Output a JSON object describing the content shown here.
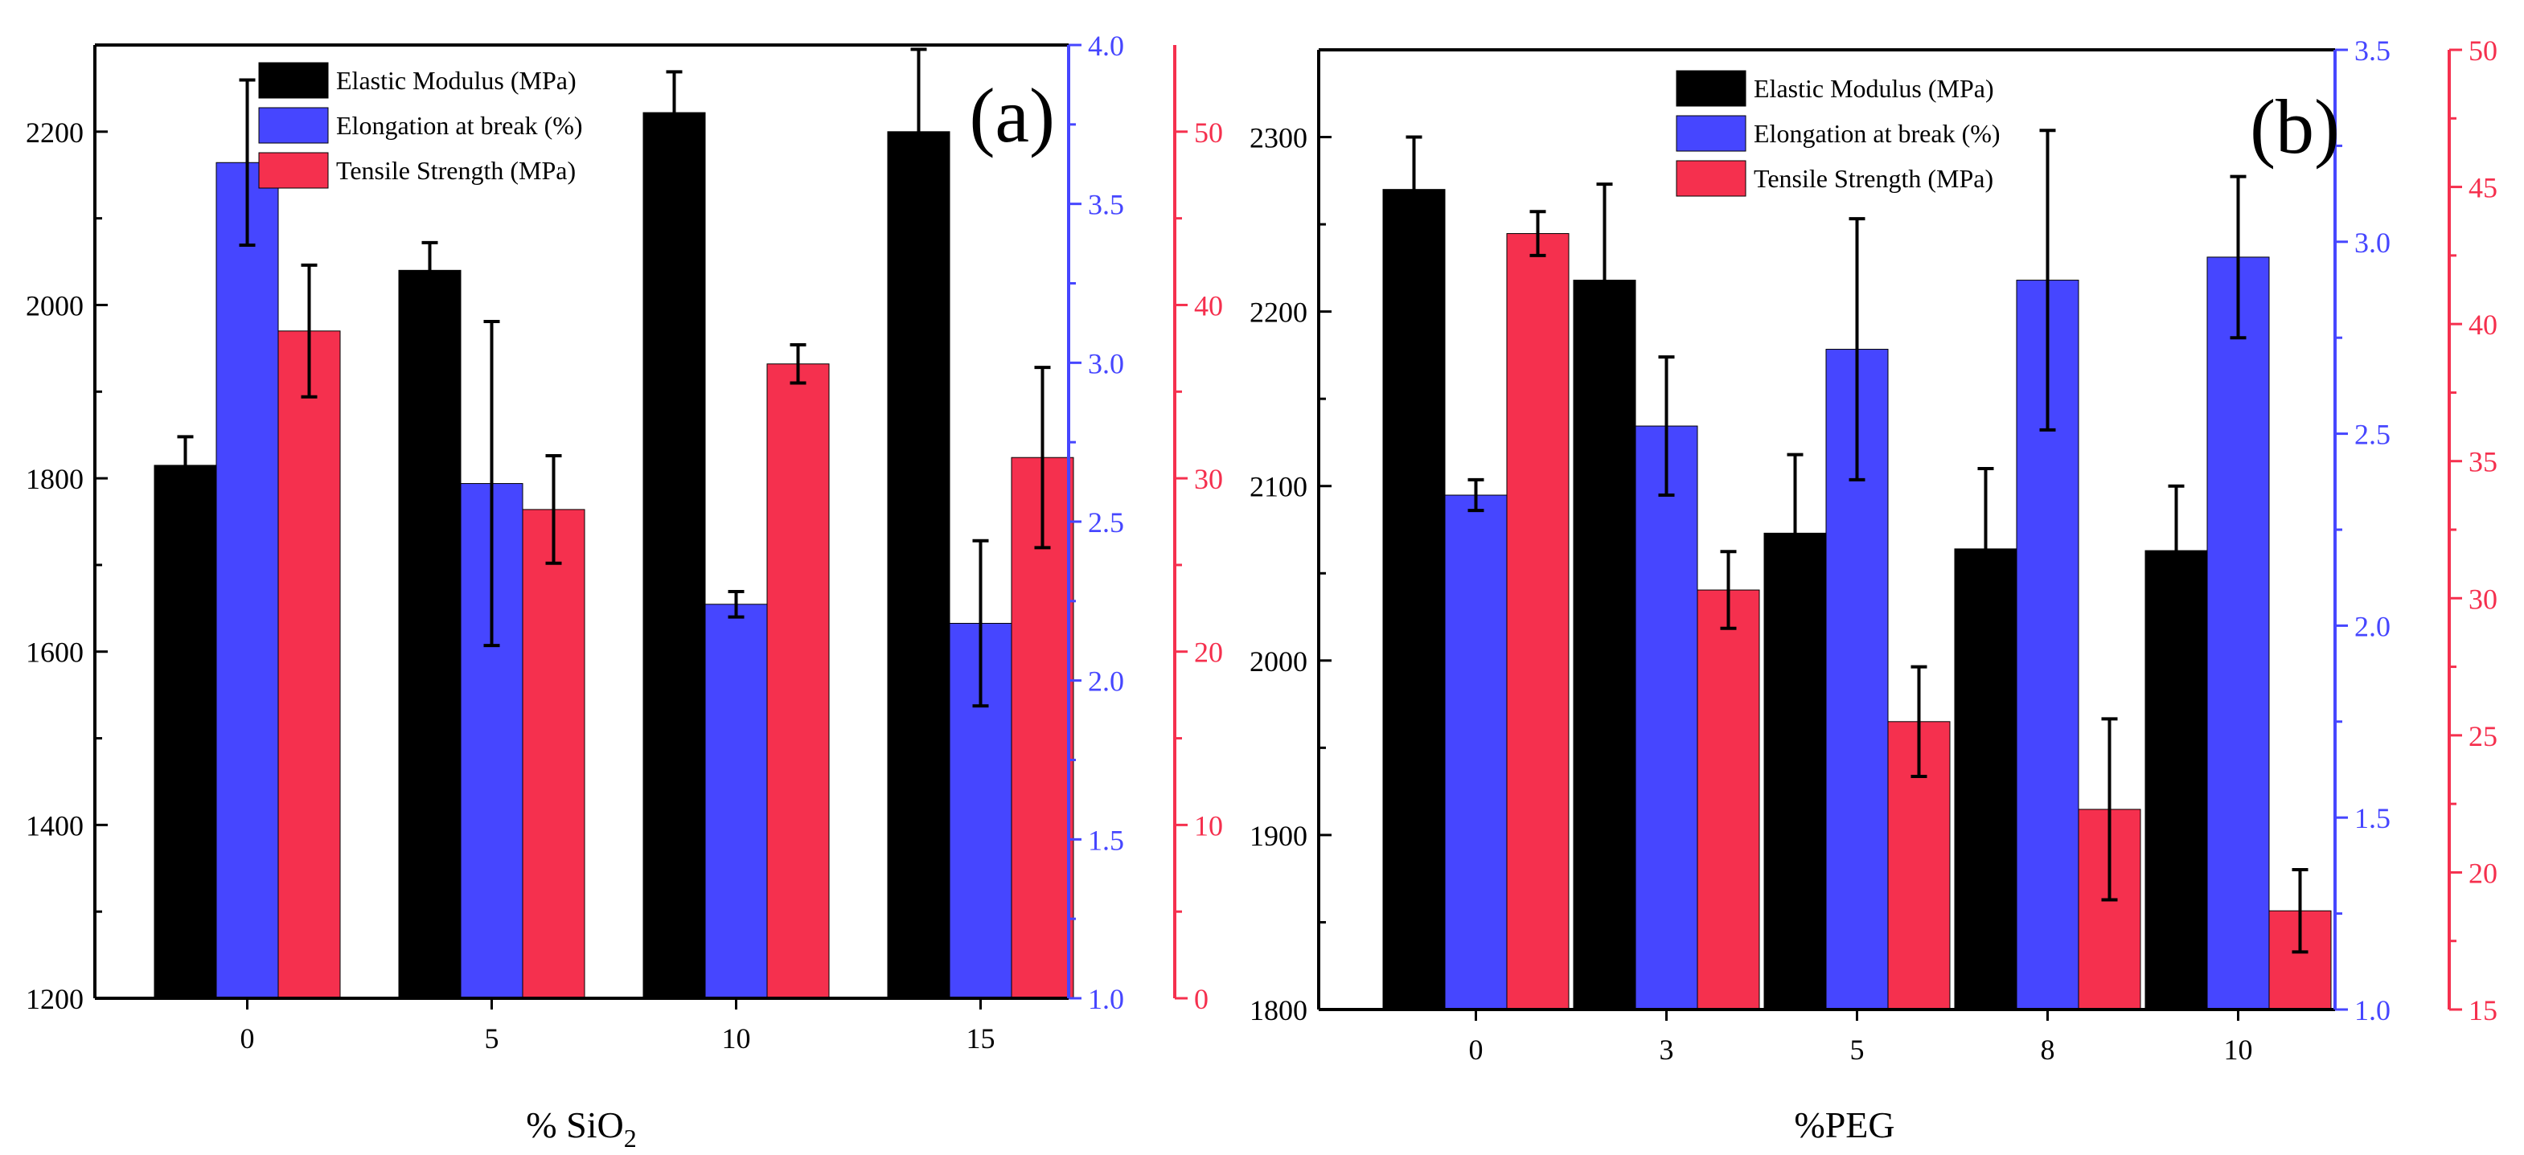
{
  "colors": {
    "elastic": "#000000",
    "elongation": "#4646ff",
    "tensile": "#f5304e",
    "axis_black": "#000000",
    "axis_blue": "#4646ff",
    "axis_red": "#f5304e"
  },
  "chart_data": [
    {
      "type": "bar",
      "panel_label": "(a)",
      "xlabel_prefix": "% SiO",
      "xlabel_subscript": "2",
      "categories": [
        "0",
        "5",
        "10",
        "15"
      ],
      "legend": [
        "Elastic Modulus (MPa)",
        "Elongation at break (%)",
        "Tensile Strength (MPa)"
      ],
      "y_left": {
        "range": [
          1200,
          2300
        ],
        "ticks": [
          1200,
          1400,
          1600,
          1800,
          2000,
          2200
        ],
        "tick_labels": [
          "1200",
          "1400",
          "1600",
          "1800",
          "2000",
          "2200"
        ]
      },
      "y_right_blue": {
        "range": [
          1.0,
          4.0
        ],
        "ticks": [
          1.0,
          1.5,
          2.0,
          2.5,
          3.0,
          3.5,
          4.0
        ],
        "tick_labels": [
          "1.0",
          "1.5",
          "2.0",
          "2.5",
          "3.0",
          "3.5",
          "4.0"
        ]
      },
      "y_right_red": {
        "range": [
          0,
          55
        ],
        "ticks": [
          0,
          10,
          20,
          30,
          40,
          50
        ],
        "tick_labels": [
          "0",
          "10",
          "20",
          "30",
          "40",
          "50"
        ]
      },
      "series": [
        {
          "name": "Elastic Modulus (MPa)",
          "axis": "left",
          "color_key": "elastic",
          "values": [
            1815,
            2040,
            2222,
            2200
          ],
          "errors": [
            33,
            32,
            47,
            95
          ]
        },
        {
          "name": "Elongation at break (%)",
          "axis": "blue",
          "color_key": "elongation",
          "values": [
            3.63,
            2.62,
            2.24,
            2.18
          ],
          "errors": [
            0.26,
            0.51,
            0.04,
            0.26
          ]
        },
        {
          "name": "Tensile Strength (MPa)",
          "axis": "red",
          "color_key": "tensile",
          "values": [
            38.5,
            28.2,
            36.6,
            31.2
          ],
          "errors": [
            3.8,
            3.1,
            1.1,
            5.2
          ]
        }
      ]
    },
    {
      "type": "bar",
      "panel_label": "(b)",
      "xlabel_prefix": "%PEG",
      "xlabel_subscript": "",
      "categories": [
        "0",
        "3",
        "5",
        "8",
        "10"
      ],
      "legend": [
        "Elastic Modulus (MPa)",
        "Elongation at break (%)",
        "Tensile Strength (MPa)"
      ],
      "y_left": {
        "range": [
          1800,
          2350
        ],
        "ticks": [
          1800,
          1900,
          2000,
          2100,
          2200,
          2300
        ],
        "tick_labels": [
          "1800",
          "1900",
          "2000",
          "2100",
          "2200",
          "2300"
        ]
      },
      "y_right_blue": {
        "range": [
          1.0,
          3.5
        ],
        "ticks": [
          1.0,
          1.5,
          2.0,
          2.5,
          3.0,
          3.5
        ],
        "tick_labels": [
          "1.0",
          "1.5",
          "2.0",
          "2.5",
          "3.0",
          "3.5"
        ]
      },
      "y_right_red": {
        "range": [
          15,
          50
        ],
        "ticks": [
          15,
          20,
          25,
          30,
          35,
          40,
          45,
          50
        ],
        "tick_labels": [
          "15",
          "20",
          "25",
          "30",
          "35",
          "40",
          "45",
          "50"
        ]
      },
      "series": [
        {
          "name": "Elastic Modulus (MPa)",
          "axis": "left",
          "color_key": "elastic",
          "values": [
            2270,
            2218,
            2073,
            2064,
            2063
          ],
          "errors": [
            30,
            55,
            45,
            46,
            37
          ]
        },
        {
          "name": "Elongation at break (%)",
          "axis": "blue",
          "color_key": "elongation",
          "values": [
            2.34,
            2.52,
            2.72,
            2.9,
            2.96
          ],
          "errors": [
            0.04,
            0.18,
            0.34,
            0.39,
            0.21
          ]
        },
        {
          "name": "Tensile Strength (MPa)",
          "axis": "red",
          "color_key": "tensile",
          "values": [
            43.3,
            30.3,
            25.5,
            22.3,
            18.6
          ],
          "errors": [
            0.8,
            1.4,
            2.0,
            3.3,
            1.5
          ]
        }
      ]
    }
  ]
}
